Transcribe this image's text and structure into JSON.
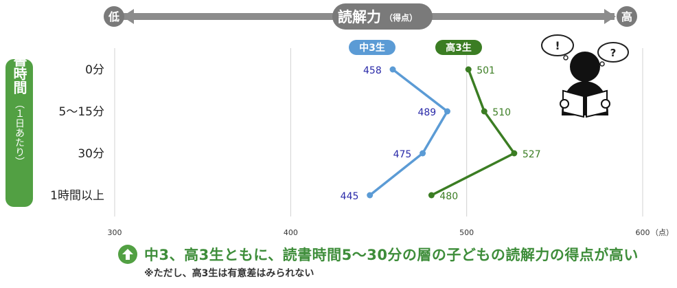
{
  "chart_data": {
    "type": "line",
    "axis_header": {
      "label": "読解力",
      "unit": "（得点）",
      "low": "低",
      "high": "高"
    },
    "yaxis_title": "読書時間",
    "yaxis_sub": "（１日あたり）",
    "categories": [
      "0分",
      "5〜15分",
      "30分",
      "1時間以上"
    ],
    "x_ticks": [
      "300",
      "400",
      "500",
      "600"
    ],
    "x_unit": "（点）",
    "xlim": [
      300,
      600
    ],
    "grid": true,
    "series": [
      {
        "name": "中3生",
        "color": "#5b9bd5",
        "label_color": "#2929a8",
        "values": [
          458,
          489,
          475,
          445
        ]
      },
      {
        "name": "高3生",
        "color": "#3b7d23",
        "label_color": "#3b7d23",
        "values": [
          501,
          510,
          527,
          480
        ]
      }
    ],
    "data_labels": [
      [
        "458",
        "489",
        "475",
        "445"
      ],
      [
        "501",
        "510",
        "527",
        "480"
      ]
    ]
  },
  "conclusion": "中3、高3生ともに、読書時間5〜30分の層の子どもの読解力の得点が高い",
  "note": "※ただし、高3生は有意差はみられない",
  "colors": {
    "header_bar": "#8c8c8c",
    "header_pill": "#7a7a7a",
    "yaxis_box": "#52a043",
    "grid": "#d0d0d0"
  }
}
